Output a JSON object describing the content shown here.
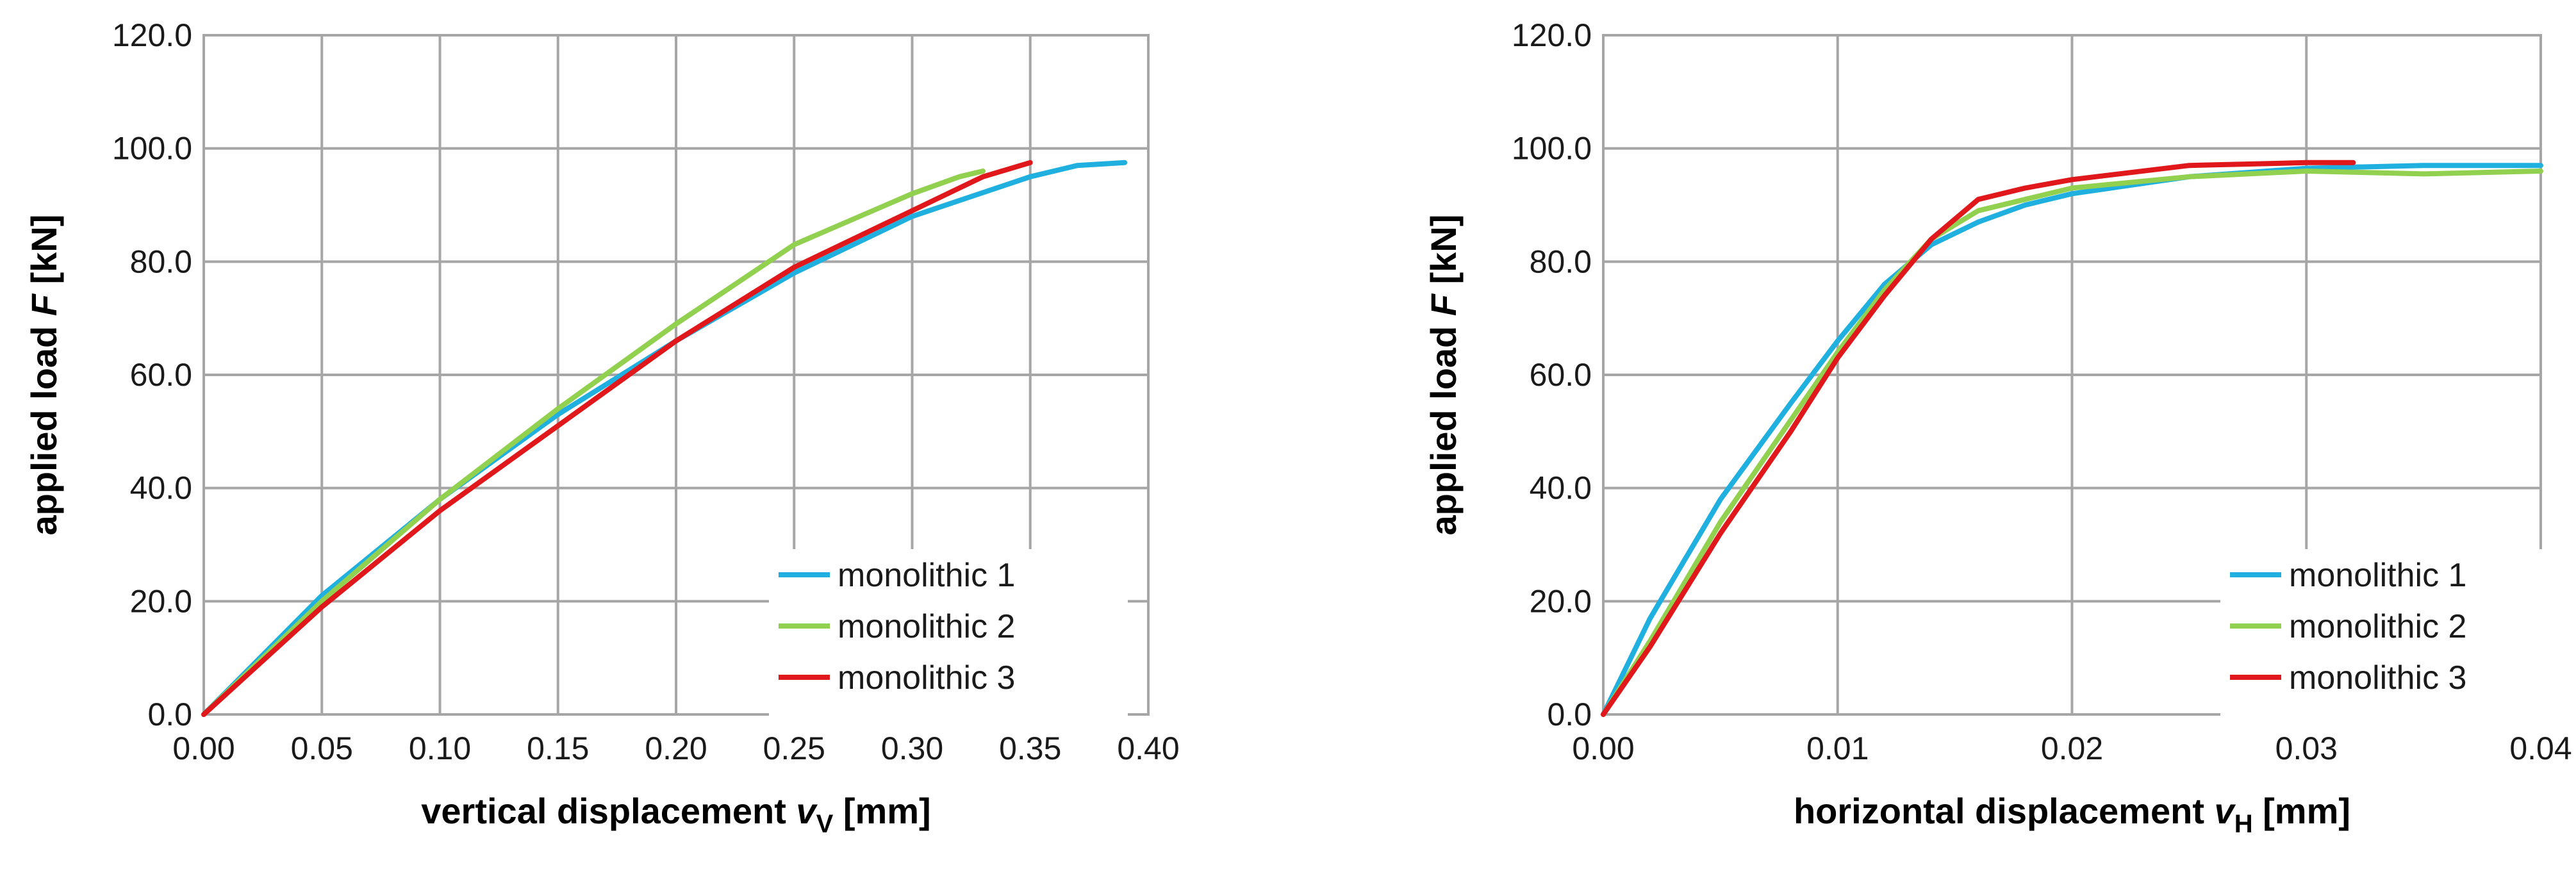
{
  "chart_data": [
    {
      "type": "line",
      "title": "",
      "xlabel": {
        "text": "vertical displacement ",
        "var": "v",
        "sub": "V",
        "unit": " [mm]"
      },
      "ylabel": {
        "text": "applied load ",
        "var": "F",
        "unit": " [kN]"
      },
      "xlim": [
        0,
        0.4
      ],
      "ylim": [
        0,
        120
      ],
      "x_ticks": [
        "0.00",
        "0.05",
        "0.10",
        "0.15",
        "0.20",
        "0.25",
        "0.30",
        "0.35",
        "0.40"
      ],
      "y_ticks": [
        "0.0",
        "20.0",
        "40.0",
        "60.0",
        "80.0",
        "100.0",
        "120.0"
      ],
      "grid": true,
      "legend_position": "bottom-right",
      "series": [
        {
          "name": "monolithic 1",
          "color": "#1fb0e0",
          "x": [
            0,
            0.05,
            0.1,
            0.15,
            0.2,
            0.25,
            0.3,
            0.35,
            0.37,
            0.39
          ],
          "y": [
            0,
            21,
            38,
            53,
            66,
            78,
            88,
            95,
            97,
            97.5
          ]
        },
        {
          "name": "monolithic 2",
          "color": "#92d050",
          "x": [
            0,
            0.05,
            0.1,
            0.15,
            0.2,
            0.25,
            0.3,
            0.32,
            0.33
          ],
          "y": [
            0,
            20,
            38,
            54,
            69,
            83,
            92,
            95,
            96
          ]
        },
        {
          "name": "monolithic 3",
          "color": "#e0171b",
          "x": [
            0,
            0.05,
            0.1,
            0.15,
            0.2,
            0.25,
            0.3,
            0.33,
            0.35
          ],
          "y": [
            0,
            19,
            36,
            51,
            66,
            79,
            89,
            95,
            97.5
          ]
        }
      ]
    },
    {
      "type": "line",
      "title": "",
      "xlabel": {
        "text": "horizontal displacement ",
        "var": "v",
        "sub": "H",
        "unit": " [mm]"
      },
      "ylabel": {
        "text": "applied load ",
        "var": "F",
        "unit": " [kN]"
      },
      "xlim": [
        0,
        0.04
      ],
      "ylim": [
        0,
        120
      ],
      "x_ticks": [
        "0.00",
        "0.01",
        "0.02",
        "0.03",
        "0.04"
      ],
      "y_ticks": [
        "0.0",
        "20.0",
        "40.0",
        "60.0",
        "80.0",
        "100.0",
        "120.0"
      ],
      "grid": true,
      "legend_position": "bottom-right",
      "series": [
        {
          "name": "monolithic 1",
          "color": "#1fb0e0",
          "x": [
            0,
            0.002,
            0.005,
            0.008,
            0.01,
            0.012,
            0.014,
            0.016,
            0.018,
            0.02,
            0.025,
            0.03,
            0.035,
            0.04
          ],
          "y": [
            0,
            17,
            38,
            55,
            66,
            76,
            83,
            87,
            90,
            92,
            95,
            96.5,
            97,
            97
          ]
        },
        {
          "name": "monolithic 2",
          "color": "#92d050",
          "x": [
            0,
            0.002,
            0.005,
            0.008,
            0.01,
            0.012,
            0.014,
            0.016,
            0.018,
            0.02,
            0.025,
            0.03,
            0.035,
            0.04
          ],
          "y": [
            0,
            13,
            34,
            52,
            64,
            75,
            84,
            89,
            91,
            93,
            95,
            96,
            95.5,
            96
          ]
        },
        {
          "name": "monolithic 3",
          "color": "#e0171b",
          "x": [
            0,
            0.002,
            0.005,
            0.008,
            0.01,
            0.012,
            0.014,
            0.016,
            0.018,
            0.02,
            0.025,
            0.03,
            0.032
          ],
          "y": [
            0,
            12,
            32,
            50,
            63,
            74,
            84,
            91,
            93,
            94.5,
            97,
            97.5,
            97.5
          ]
        }
      ]
    }
  ]
}
